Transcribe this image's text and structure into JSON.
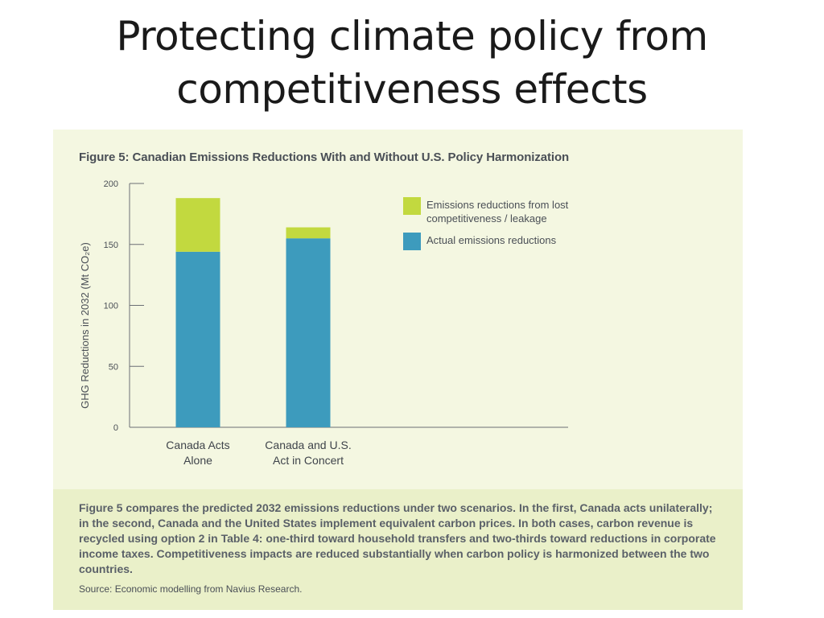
{
  "slide": {
    "title_line1": "Protecting climate policy from",
    "title_line2": "competitiveness effects"
  },
  "figure": {
    "title": "Figure 5: Canadian Emissions Reductions With and Without U.S. Policy Harmonization",
    "caption": "Figure 5 compares the predicted 2032 emissions reductions under two scenarios. In the first, Canada acts unilaterally; in the second, Canada and the United States implement equivalent carbon prices. In both cases, carbon revenue is recycled using option 2 in Table 4: one-third toward household transfers and two-thirds toward reductions in corporate income taxes. Competitiveness impacts are reduced substantially when carbon policy is harmonized between the two countries.",
    "source": "Source: Economic modelling from Navius Research."
  },
  "colors": {
    "leakage": "#c2d93f",
    "actual": "#3d9bbd",
    "axis": "#6b6f75",
    "panel": "#f4f7e1",
    "caption_bg": "#eaf0c9"
  },
  "chart_data": {
    "type": "bar",
    "stacked": true,
    "ylabel": "GHG Reductions in 2032 (Mt CO₂e)",
    "ylim": [
      0,
      200
    ],
    "yticks": [
      0,
      50,
      100,
      150,
      200
    ],
    "categories": [
      [
        "Canada Acts",
        "Alone"
      ],
      [
        "Canada and U.S.",
        "Act in Concert"
      ]
    ],
    "series": [
      {
        "name": "Actual emissions reductions",
        "values": [
          144,
          155
        ]
      },
      {
        "name": "Emissions reductions from lost competitiveness / leakage",
        "values": [
          44,
          9
        ]
      }
    ],
    "legend": [
      {
        "lines": [
          "Emissions reductions from lost",
          "competitiveness / leakage"
        ],
        "series": 1
      },
      {
        "lines": [
          "Actual emissions reductions"
        ],
        "series": 0
      }
    ],
    "legend_position": "top-right"
  }
}
